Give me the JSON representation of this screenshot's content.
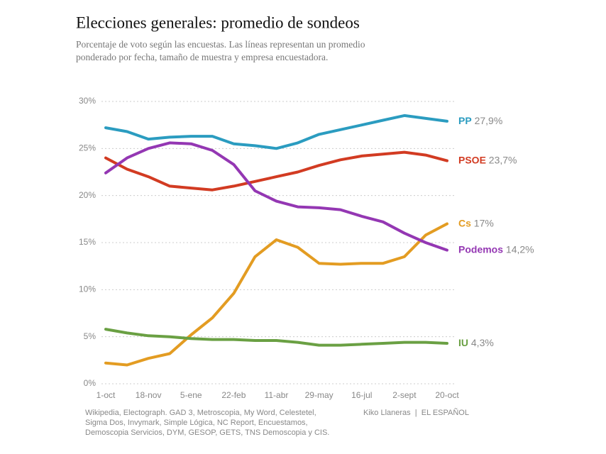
{
  "chart_data": {
    "type": "line",
    "title": "Elecciones generales: promedio de sondeos",
    "subtitle_lines": [
      "Porcentaje de voto según las encuestas. Las líneas representan un promedio",
      "ponderado por fecha, tamaño de muestra y empresa encuestadora."
    ],
    "categories": [
      "1-oct",
      null,
      "18-nov",
      null,
      "5-ene",
      null,
      "22-feb",
      null,
      "11-abr",
      null,
      "29-may",
      null,
      "16-jul",
      null,
      "2-sept",
      null,
      "20-oct"
    ],
    "series": [
      {
        "name": "PP",
        "color": "#2b9cc0",
        "values": [
          27.2,
          26.8,
          26.0,
          26.2,
          26.3,
          26.3,
          25.5,
          25.3,
          25.0,
          25.6,
          26.5,
          27.0,
          27.5,
          28.0,
          28.5,
          28.2,
          27.9
        ],
        "value_labels": [
          null,
          null,
          null,
          null,
          null,
          null,
          null,
          null,
          null,
          null,
          null,
          null,
          null,
          null,
          null,
          null,
          "27,9%"
        ]
      },
      {
        "name": "PSOE",
        "color": "#d23b22",
        "values": [
          24.0,
          22.8,
          22.0,
          21.0,
          20.8,
          20.6,
          21.0,
          21.5,
          22.0,
          22.5,
          23.2,
          23.8,
          24.2,
          24.4,
          24.6,
          24.3,
          23.7
        ],
        "value_labels": [
          null,
          null,
          null,
          null,
          null,
          null,
          null,
          null,
          null,
          null,
          null,
          null,
          null,
          null,
          null,
          null,
          "23,7%"
        ]
      },
      {
        "name": "Cs",
        "color": "#e39c22",
        "values": [
          2.2,
          2.0,
          2.7,
          3.2,
          5.2,
          7.0,
          9.6,
          13.5,
          15.3,
          14.5,
          12.8,
          12.7,
          12.8,
          12.8,
          13.5,
          15.8,
          17.0
        ],
        "value_labels": [
          null,
          null,
          null,
          null,
          null,
          null,
          null,
          null,
          null,
          null,
          null,
          null,
          null,
          null,
          null,
          null,
          "17%"
        ]
      },
      {
        "name": "Podemos",
        "color": "#9437b3",
        "values": [
          22.4,
          24.0,
          25.0,
          25.6,
          25.5,
          24.8,
          23.3,
          20.5,
          19.4,
          18.8,
          18.7,
          18.5,
          17.8,
          17.2,
          16.0,
          15.0,
          14.2
        ],
        "value_labels": [
          null,
          null,
          null,
          null,
          null,
          null,
          null,
          null,
          null,
          null,
          null,
          null,
          null,
          null,
          null,
          null,
          "14,2%"
        ]
      },
      {
        "name": "IU",
        "color": "#6aa043",
        "values": [
          5.8,
          5.4,
          5.1,
          5.0,
          4.8,
          4.7,
          4.7,
          4.6,
          4.6,
          4.4,
          4.1,
          4.1,
          4.2,
          4.3,
          4.4,
          4.4,
          4.3
        ],
        "value_labels": [
          null,
          null,
          null,
          null,
          null,
          null,
          null,
          null,
          null,
          null,
          null,
          null,
          null,
          null,
          null,
          null,
          "4,3%"
        ]
      }
    ],
    "ylim": [
      0,
      30
    ],
    "yticks": [
      {
        "value": 0,
        "label": "0%"
      },
      {
        "value": 5,
        "label": "5%"
      },
      {
        "value": 10,
        "label": "10%"
      },
      {
        "value": 15,
        "label": "15%"
      },
      {
        "value": 20,
        "label": "20%"
      },
      {
        "value": 25,
        "label": "25%"
      },
      {
        "value": 30,
        "label": "30%"
      }
    ],
    "grid": true,
    "source_lines": [
      "Wikipedia, Electograph. GAD 3, Metroscopia, My Word, Celestetel,",
      "Sigma Dos, Invymark, Simple Lógica, NC Report, Encuestamos,",
      "Demoscopia Servicios, DYM, GESOP, GETS, TNS Demoscopia y CIS."
    ],
    "credit": "Kiko Llaneras  |  EL ESPAÑOL"
  }
}
